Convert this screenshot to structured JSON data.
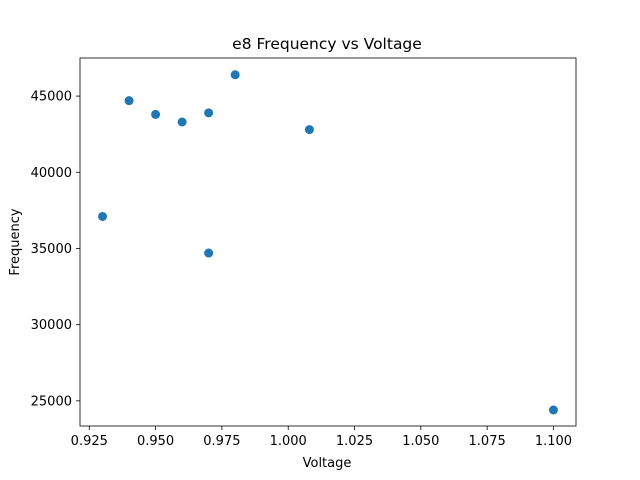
{
  "chart_data": {
    "type": "scatter",
    "title": "e8 Frequency vs Voltage",
    "xlabel": "Voltage",
    "ylabel": "Frequency",
    "xlim": [
      0.9215,
      1.1085
    ],
    "ylim": [
      23350,
      47500
    ],
    "x_ticks": [
      0.925,
      0.95,
      0.975,
      1.0,
      1.025,
      1.05,
      1.075,
      1.1
    ],
    "x_tick_labels": [
      "0.925",
      "0.950",
      "0.975",
      "1.000",
      "1.025",
      "1.050",
      "1.075",
      "1.100"
    ],
    "y_ticks": [
      25000,
      30000,
      35000,
      40000,
      45000
    ],
    "y_tick_labels": [
      "25000",
      "30000",
      "35000",
      "40000",
      "45000"
    ],
    "grid": false,
    "legend": "none",
    "series": [
      {
        "color": "#1f77b4",
        "points": [
          {
            "x": 0.93,
            "y": 37100
          },
          {
            "x": 0.94,
            "y": 44700
          },
          {
            "x": 0.95,
            "y": 43800
          },
          {
            "x": 0.96,
            "y": 43300
          },
          {
            "x": 0.97,
            "y": 43900
          },
          {
            "x": 0.97,
            "y": 34700
          },
          {
            "x": 0.98,
            "y": 46400
          },
          {
            "x": 1.008,
            "y": 42800
          },
          {
            "x": 1.1,
            "y": 24400
          }
        ]
      }
    ]
  }
}
